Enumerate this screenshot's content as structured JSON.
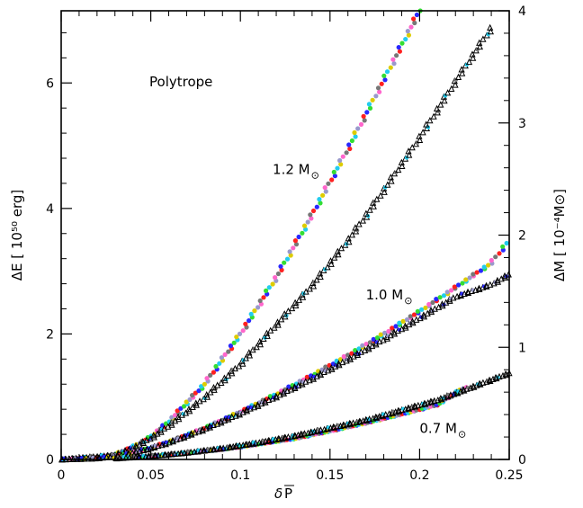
{
  "chart_data": {
    "type": "scatter",
    "annotation_title": "Polytrope",
    "xlabel_symbol": "δ",
    "xlabel_var": "P",
    "ylabel_left": "ΔE  [ 10⁵⁰ erg]",
    "ylabel_right": "ΔM  [ 10⁻⁴M⊙]",
    "x_ticks": [
      "0",
      "0.05",
      "0.1",
      "0.15",
      "0.2",
      "0.25"
    ],
    "y_left_ticks": [
      "0",
      "2",
      "4",
      "6"
    ],
    "y_right_ticks": [
      "0",
      "1",
      "2",
      "3",
      "4"
    ],
    "xlim": [
      0,
      0.25
    ],
    "ylim_left": [
      0,
      7.15
    ],
    "ylim_right": [
      0,
      4.0
    ],
    "mass_labels": [
      {
        "text": "1.2 M",
        "sun": "⊙",
        "x": 0.118,
        "y": 4.55
      },
      {
        "text": "1.0 M",
        "sun": "⊙",
        "x": 0.17,
        "y": 2.55
      },
      {
        "text": "0.7 M",
        "sun": "⊙",
        "x": 0.2,
        "y": 0.42
      }
    ],
    "colors": [
      "#ff2020",
      "#2828ff",
      "#33dd33",
      "#22ccee",
      "#ddcc00",
      "#9999cc",
      "#ff66cc",
      "#777777"
    ],
    "series": [
      {
        "axis": "left",
        "style": "dots",
        "x": [
          0.0,
          0.02,
          0.03,
          0.04,
          0.05,
          0.06,
          0.08,
          0.1,
          0.12,
          0.14,
          0.16,
          0.18,
          0.2
        ],
        "y": [
          0.0,
          0.03,
          0.08,
          0.2,
          0.36,
          0.6,
          1.2,
          2.0,
          2.9,
          3.9,
          4.95,
          6.05,
          7.15
        ]
      },
      {
        "axis": "right",
        "style": "triangles",
        "x": [
          0.0,
          0.03,
          0.04,
          0.05,
          0.06,
          0.08,
          0.1,
          0.12,
          0.14,
          0.16,
          0.18,
          0.2,
          0.22,
          0.24
        ],
        "y": [
          0.0,
          0.04,
          0.1,
          0.19,
          0.3,
          0.55,
          0.85,
          1.2,
          1.55,
          1.95,
          2.4,
          2.87,
          3.37,
          3.85
        ]
      },
      {
        "axis": "left",
        "style": "dots",
        "x": [
          0.0,
          0.02,
          0.03,
          0.04,
          0.05,
          0.06,
          0.08,
          0.1,
          0.12,
          0.14,
          0.16,
          0.18,
          0.2,
          0.22,
          0.24,
          0.25
        ],
        "y": [
          0.0,
          0.02,
          0.05,
          0.11,
          0.19,
          0.28,
          0.5,
          0.76,
          1.04,
          1.34,
          1.66,
          2.0,
          2.36,
          2.74,
          3.13,
          3.5
        ]
      },
      {
        "axis": "right",
        "style": "triangles",
        "x": [
          0.0,
          0.02,
          0.03,
          0.04,
          0.05,
          0.06,
          0.08,
          0.1,
          0.12,
          0.14,
          0.16,
          0.18,
          0.2,
          0.22,
          0.24,
          0.25
        ],
        "y": [
          0.0,
          0.01,
          0.03,
          0.06,
          0.1,
          0.15,
          0.27,
          0.41,
          0.56,
          0.72,
          0.89,
          1.07,
          1.26,
          1.45,
          1.56,
          1.65
        ]
      },
      {
        "axis": "left",
        "style": "dots",
        "x": [
          0.03,
          0.05,
          0.07,
          0.09,
          0.11,
          0.13,
          0.15,
          0.17,
          0.19,
          0.21,
          0.225
        ],
        "y": [
          0.02,
          0.05,
          0.1,
          0.16,
          0.24,
          0.33,
          0.45,
          0.58,
          0.72,
          0.87,
          1.15
        ]
      },
      {
        "axis": "right",
        "style": "triangles",
        "x": [
          0.03,
          0.05,
          0.07,
          0.09,
          0.11,
          0.13,
          0.15,
          0.17,
          0.19,
          0.21,
          0.23,
          0.25
        ],
        "y": [
          0.01,
          0.03,
          0.06,
          0.1,
          0.15,
          0.21,
          0.28,
          0.35,
          0.44,
          0.53,
          0.65,
          0.77
        ]
      }
    ]
  }
}
